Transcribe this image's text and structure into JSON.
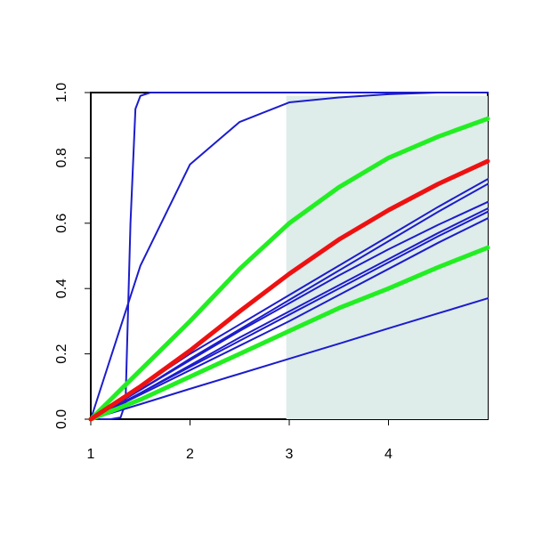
{
  "chart_data": {
    "type": "line",
    "x": [
      1,
      1.5,
      2,
      2.5,
      3,
      3.5,
      4,
      4.5,
      5
    ],
    "xlim": [
      1,
      5
    ],
    "ylim": [
      0,
      1
    ],
    "xticks": [
      1,
      2,
      3,
      4
    ],
    "yticks": [
      {
        "value": 0,
        "label": "0.0"
      },
      0.2,
      0.4,
      0.6,
      0.8,
      {
        "value": 1,
        "label": "1.0"
      }
    ],
    "shaded_region": {
      "color": "#deecea",
      "xlim": [
        2.97,
        5
      ],
      "ylim": [
        0,
        0.99
      ]
    },
    "series": [
      {
        "color": "#1c1ccc",
        "width": 2,
        "x": [
          1,
          1.2,
          1.3,
          1.35,
          1.4,
          1.45,
          1.5,
          1.6,
          2,
          3,
          4,
          5
        ],
        "values": [
          0,
          0,
          0.005,
          0.05,
          0.6,
          0.95,
          0.99,
          1,
          1,
          1,
          1,
          1
        ]
      },
      {
        "color": "#1c1ccc",
        "width": 2,
        "values": [
          0,
          0.47,
          0.78,
          0.91,
          0.97,
          0.985,
          0.995,
          1,
          1
        ]
      },
      {
        "color": "#1c1ccc",
        "width": 2,
        "values": [
          0,
          0.1,
          0.2,
          0.29,
          0.38,
          0.47,
          0.56,
          0.65,
          0.735
        ]
      },
      {
        "color": "#1c1ccc",
        "width": 2,
        "values": [
          0,
          0.09,
          0.185,
          0.275,
          0.365,
          0.455,
          0.545,
          0.635,
          0.72
        ]
      },
      {
        "color": "#1c1ccc",
        "width": 2,
        "values": [
          0,
          0.09,
          0.18,
          0.27,
          0.355,
          0.44,
          0.52,
          0.595,
          0.665
        ]
      },
      {
        "color": "#1c1ccc",
        "width": 2,
        "values": [
          0,
          0.08,
          0.165,
          0.25,
          0.33,
          0.41,
          0.49,
          0.57,
          0.645
        ]
      },
      {
        "color": "#1c1ccc",
        "width": 2,
        "values": [
          0,
          0.08,
          0.16,
          0.24,
          0.32,
          0.4,
          0.48,
          0.56,
          0.635
        ]
      },
      {
        "color": "#1c1ccc",
        "width": 2,
        "values": [
          0,
          0.075,
          0.15,
          0.225,
          0.3,
          0.38,
          0.46,
          0.54,
          0.615
        ]
      },
      {
        "color": "#1c1ccc",
        "width": 2,
        "values": [
          0,
          0.046,
          0.093,
          0.139,
          0.185,
          0.231,
          0.278,
          0.324,
          0.37
        ]
      },
      {
        "color": "#22ee22",
        "width": 5,
        "values": [
          0,
          0.15,
          0.3,
          0.46,
          0.6,
          0.71,
          0.8,
          0.865,
          0.92
        ]
      },
      {
        "color": "#22ee22",
        "width": 5,
        "values": [
          0,
          0.06,
          0.13,
          0.2,
          0.27,
          0.34,
          0.4,
          0.465,
          0.525
        ]
      },
      {
        "color": "#ee1111",
        "width": 5,
        "values": [
          0,
          0.1,
          0.21,
          0.33,
          0.445,
          0.55,
          0.64,
          0.72,
          0.79
        ]
      }
    ]
  }
}
